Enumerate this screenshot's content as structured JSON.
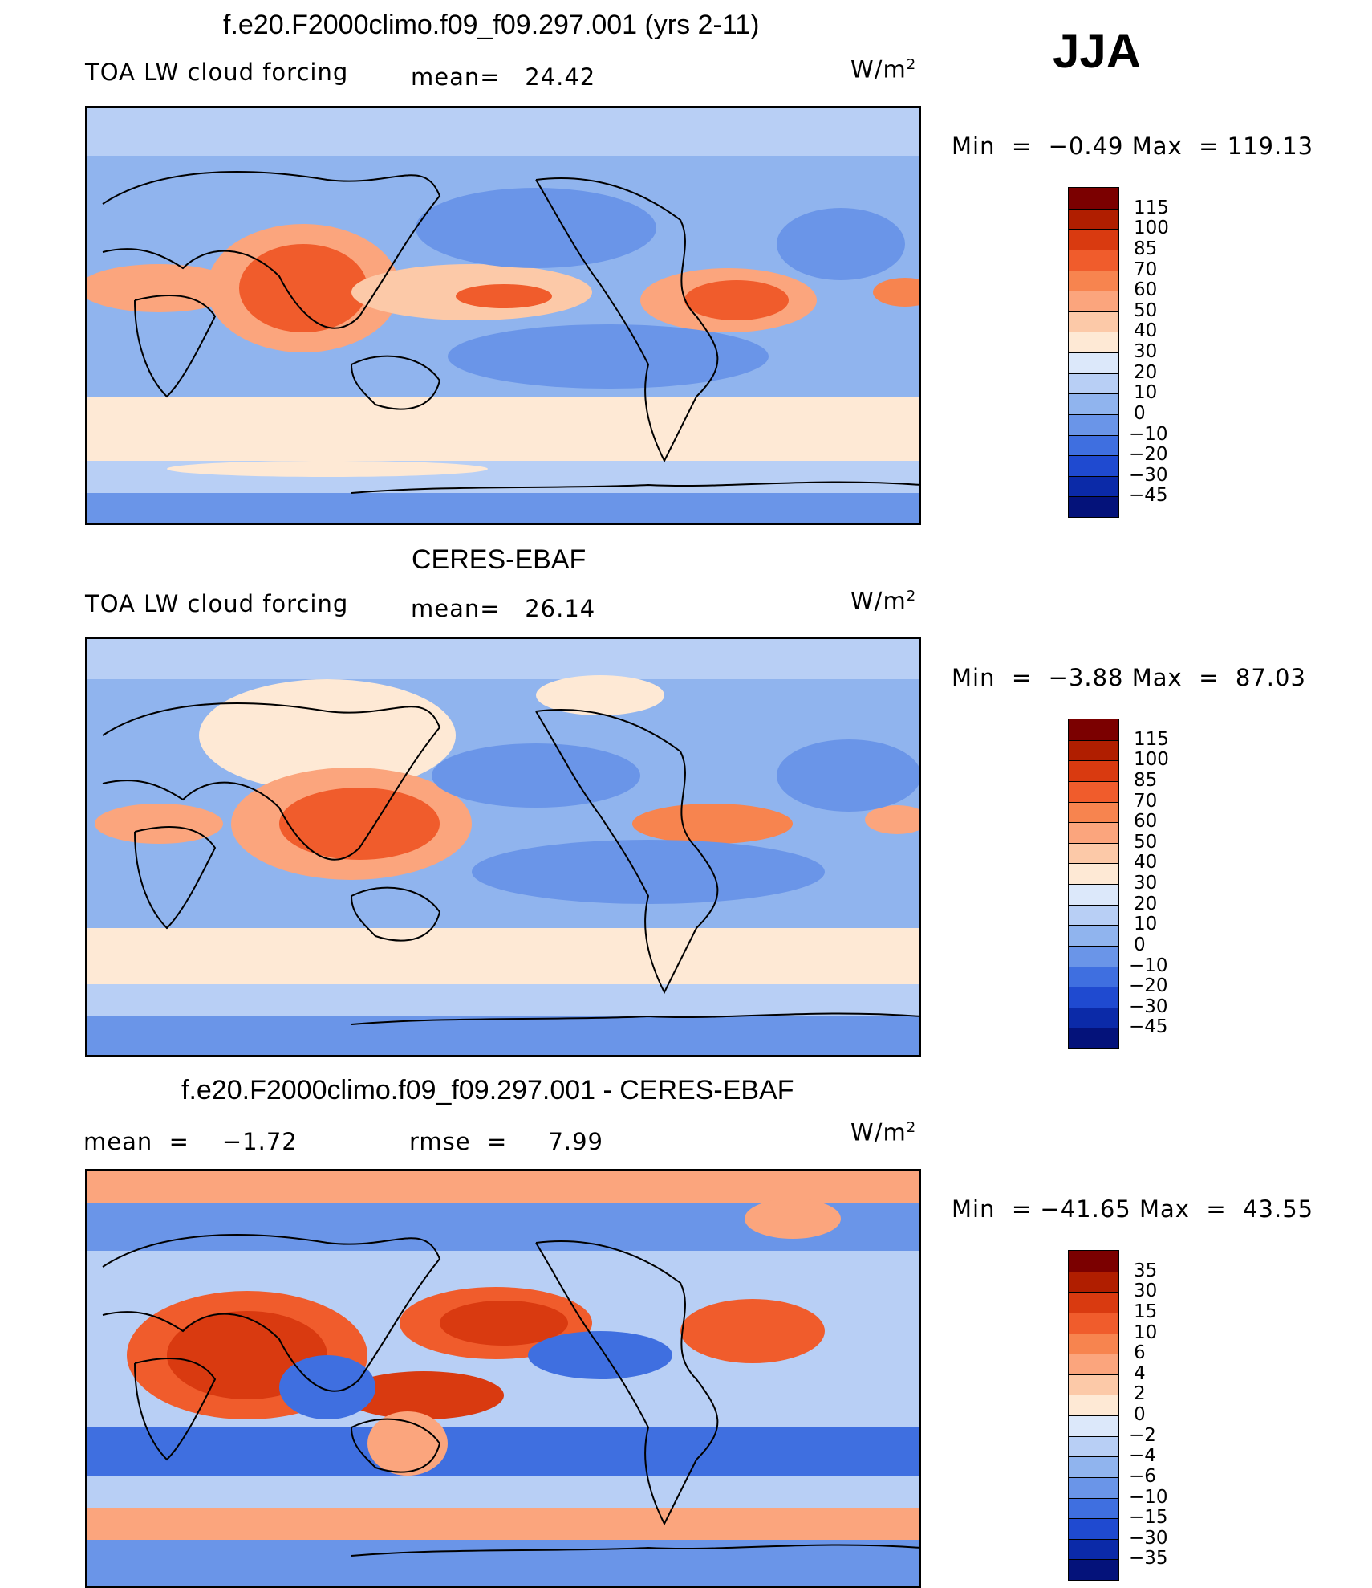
{
  "season": "JJA",
  "units_base": "W/m",
  "units_exp": "2",
  "panels": [
    {
      "title": "f.e20.F2000climo.f09_f09.297.001 (yrs 2-11)",
      "left_text": "TOA LW cloud forcing",
      "mid_text": "mean=   24.42",
      "min_label": "Min  =",
      "min_value": "−0.49",
      "max_label": "Max  =",
      "max_value": "119.13",
      "colorbar": {
        "labels": [
          "115",
          "100",
          "85",
          "70",
          "60",
          "50",
          "40",
          "30",
          "20",
          "10",
          "0",
          "−10",
          "−20",
          "−30",
          "−45"
        ],
        "colors": [
          "#7b0000",
          "#b01e00",
          "#d93a10",
          "#f05c2c",
          "#f7844f",
          "#fba57d",
          "#fcc9a8",
          "#fee9d5",
          "#dce8fa",
          "#b8cff5",
          "#90b4ee",
          "#6a95e8",
          "#3f6fe0",
          "#1f4ad0",
          "#0b2aa8",
          "#04127a"
        ]
      }
    },
    {
      "title": "CERES-EBAF",
      "left_text": "TOA LW cloud forcing",
      "mid_text": "mean=   26.14",
      "min_label": "Min  =",
      "min_value": "−3.88",
      "max_label": "Max  =",
      "max_value": "87.03",
      "colorbar": {
        "labels": [
          "115",
          "100",
          "85",
          "70",
          "60",
          "50",
          "40",
          "30",
          "20",
          "10",
          "0",
          "−10",
          "−20",
          "−30",
          "−45"
        ],
        "colors": [
          "#7b0000",
          "#b01e00",
          "#d93a10",
          "#f05c2c",
          "#f7844f",
          "#fba57d",
          "#fcc9a8",
          "#fee9d5",
          "#dce8fa",
          "#b8cff5",
          "#90b4ee",
          "#6a95e8",
          "#3f6fe0",
          "#1f4ad0",
          "#0b2aa8",
          "#04127a"
        ]
      }
    },
    {
      "title": "f.e20.F2000climo.f09_f09.297.001 - CERES-EBAF",
      "left_text": "mean  =    −1.72",
      "mid_text": "rmse  =     7.99",
      "min_label": "Min  =",
      "min_value": "−41.65",
      "max_label": "Max  =",
      "max_value": "43.55",
      "colorbar": {
        "labels": [
          "35",
          "30",
          "15",
          "10",
          "6",
          "4",
          "2",
          "0",
          "−2",
          "−4",
          "−6",
          "−10",
          "−15",
          "−30",
          "−35"
        ],
        "colors": [
          "#7b0000",
          "#b01e00",
          "#d93a10",
          "#f05c2c",
          "#f7844f",
          "#fba57d",
          "#fcc9a8",
          "#fee9d5",
          "#dce8fa",
          "#b8cff5",
          "#90b4ee",
          "#6a95e8",
          "#3f6fe0",
          "#1f4ad0",
          "#0b2aa8",
          "#04127a"
        ]
      }
    }
  ]
}
